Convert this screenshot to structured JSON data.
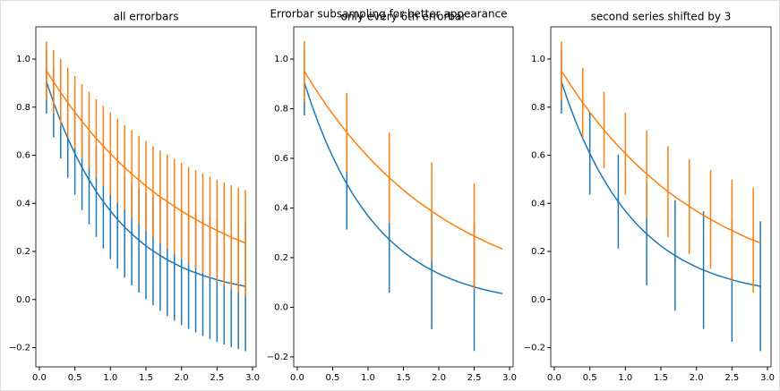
{
  "title": "Errorbar subsampling for better appearance",
  "chart_data": [
    {
      "type": "line",
      "title": "all errorbars",
      "x": [
        0.1,
        0.2,
        0.3,
        0.4,
        0.5,
        0.6,
        0.7,
        0.8,
        0.9,
        1.0,
        1.1,
        1.2,
        1.3,
        1.4,
        1.5,
        1.6,
        1.7,
        1.8,
        1.9,
        2.0,
        2.1,
        2.2,
        2.3,
        2.4,
        2.5,
        2.6,
        2.7,
        2.8,
        2.9
      ],
      "xlim": [
        -0.05,
        3.05
      ],
      "ylim": [
        -0.28,
        1.134
      ],
      "xticks": [
        {
          "value": 0,
          "label": "0.0"
        },
        0.5,
        {
          "value": 1,
          "label": "1.0"
        },
        1.5,
        {
          "value": 2,
          "label": "2.0"
        },
        2.5,
        {
          "value": 3,
          "label": "3.0"
        }
      ],
      "yticks": [
        {
          "value": -0.2,
          "label": "−0.2"
        },
        {
          "value": 0,
          "label": "0.0"
        },
        0.2,
        0.4,
        0.6,
        0.8,
        {
          "value": 1,
          "label": "1.0"
        }
      ],
      "series": [
        {
          "color": "#1f77b4",
          "values": [
            0.905,
            0.819,
            0.741,
            0.67,
            0.607,
            0.549,
            0.497,
            0.449,
            0.407,
            0.368,
            0.333,
            0.301,
            0.273,
            0.247,
            0.223,
            0.202,
            0.183,
            0.165,
            0.15,
            0.135,
            0.122,
            0.111,
            0.1,
            0.091,
            0.082,
            0.074,
            0.067,
            0.061,
            0.055
          ],
          "errors": [
            0.132,
            0.145,
            0.155,
            0.163,
            0.171,
            0.177,
            0.184,
            0.189,
            0.195,
            0.2,
            0.205,
            0.21,
            0.214,
            0.218,
            0.222,
            0.226,
            0.23,
            0.234,
            0.238,
            0.241,
            0.245,
            0.248,
            0.252,
            0.255,
            0.258,
            0.261,
            0.264,
            0.267,
            0.27
          ]
        },
        {
          "color": "#ff7f0e",
          "values": [
            0.951,
            0.905,
            0.861,
            0.819,
            0.779,
            0.741,
            0.705,
            0.67,
            0.638,
            0.607,
            0.577,
            0.549,
            0.522,
            0.497,
            0.472,
            0.449,
            0.427,
            0.407,
            0.387,
            0.368,
            0.35,
            0.333,
            0.317,
            0.301,
            0.287,
            0.273,
            0.259,
            0.247,
            0.235
          ],
          "errors": [
            0.122,
            0.132,
            0.139,
            0.145,
            0.15,
            0.155,
            0.159,
            0.163,
            0.167,
            0.171,
            0.174,
            0.177,
            0.181,
            0.184,
            0.187,
            0.189,
            0.192,
            0.195,
            0.197,
            0.2,
            0.202,
            0.205,
            0.207,
            0.21,
            0.212,
            0.214,
            0.216,
            0.218,
            0.22
          ]
        }
      ]
    },
    {
      "type": "line",
      "title": "only every 6th errorbar",
      "x": [
        0.1,
        0.2,
        0.3,
        0.4,
        0.5,
        0.6,
        0.7,
        0.8,
        0.9,
        1.0,
        1.1,
        1.2,
        1.3,
        1.4,
        1.5,
        1.6,
        1.7,
        1.8,
        1.9,
        2.0,
        2.1,
        2.2,
        2.3,
        2.4,
        2.5,
        2.6,
        2.7,
        2.8,
        2.9
      ],
      "xlim": [
        -0.05,
        3.05
      ],
      "ylim": [
        -0.24,
        1.13
      ],
      "xticks": [
        {
          "value": 0,
          "label": "0.0"
        },
        0.5,
        {
          "value": 1,
          "label": "1.0"
        },
        1.5,
        {
          "value": 2,
          "label": "2.0"
        },
        2.5,
        {
          "value": 3,
          "label": "3.0"
        }
      ],
      "yticks": [
        {
          "value": -0.2,
          "label": "−0.2"
        },
        {
          "value": 0,
          "label": "0.0"
        },
        0.2,
        0.4,
        0.6,
        0.8,
        {
          "value": 1,
          "label": "1.0"
        }
      ],
      "series": [
        {
          "color": "#1f77b4",
          "values": [
            0.905,
            0.819,
            0.741,
            0.67,
            0.607,
            0.549,
            0.497,
            0.449,
            0.407,
            0.368,
            0.333,
            0.301,
            0.273,
            0.247,
            0.223,
            0.202,
            0.183,
            0.165,
            0.15,
            0.135,
            0.122,
            0.111,
            0.1,
            0.091,
            0.082,
            0.074,
            0.067,
            0.061,
            0.055
          ],
          "errors": [
            0.132,
            null,
            null,
            null,
            null,
            null,
            0.184,
            null,
            null,
            null,
            null,
            null,
            0.214,
            null,
            null,
            null,
            null,
            null,
            0.238,
            null,
            null,
            null,
            null,
            null,
            0.258,
            null,
            null,
            null,
            null
          ]
        },
        {
          "color": "#ff7f0e",
          "values": [
            0.951,
            0.905,
            0.861,
            0.819,
            0.779,
            0.741,
            0.705,
            0.67,
            0.638,
            0.607,
            0.577,
            0.549,
            0.522,
            0.497,
            0.472,
            0.449,
            0.427,
            0.407,
            0.387,
            0.368,
            0.35,
            0.333,
            0.317,
            0.301,
            0.287,
            0.273,
            0.259,
            0.247,
            0.235
          ],
          "errors": [
            0.122,
            null,
            null,
            null,
            null,
            null,
            0.159,
            null,
            null,
            null,
            null,
            null,
            0.181,
            null,
            null,
            null,
            null,
            null,
            0.197,
            null,
            null,
            null,
            null,
            null,
            0.212,
            null,
            null,
            null,
            null
          ]
        }
      ]
    },
    {
      "type": "line",
      "title": "second series shifted by 3",
      "x": [
        0.1,
        0.2,
        0.3,
        0.4,
        0.5,
        0.6,
        0.7,
        0.8,
        0.9,
        1.0,
        1.1,
        1.2,
        1.3,
        1.4,
        1.5,
        1.6,
        1.7,
        1.8,
        1.9,
        2.0,
        2.1,
        2.2,
        2.3,
        2.4,
        2.5,
        2.6,
        2.7,
        2.8,
        2.9
      ],
      "xlim": [
        -0.05,
        3.05
      ],
      "ylim": [
        -0.28,
        1.134
      ],
      "xticks": [
        {
          "value": 0,
          "label": "0.0"
        },
        0.5,
        {
          "value": 1,
          "label": "1.0"
        },
        1.5,
        {
          "value": 2,
          "label": "2.0"
        },
        2.5,
        {
          "value": 3,
          "label": "3.0"
        }
      ],
      "yticks": [
        {
          "value": -0.2,
          "label": "−0.2"
        },
        {
          "value": 0,
          "label": "0.0"
        },
        0.2,
        0.4,
        0.6,
        0.8,
        {
          "value": 1,
          "label": "1.0"
        }
      ],
      "series": [
        {
          "color": "#1f77b4",
          "values": [
            0.905,
            0.819,
            0.741,
            0.67,
            0.607,
            0.549,
            0.497,
            0.449,
            0.407,
            0.368,
            0.333,
            0.301,
            0.273,
            0.247,
            0.223,
            0.202,
            0.183,
            0.165,
            0.15,
            0.135,
            0.122,
            0.111,
            0.1,
            0.091,
            0.082,
            0.074,
            0.067,
            0.061,
            0.055
          ],
          "errors": [
            0.132,
            null,
            null,
            null,
            0.171,
            null,
            null,
            null,
            0.195,
            null,
            null,
            null,
            0.214,
            null,
            null,
            null,
            0.23,
            null,
            null,
            null,
            0.245,
            null,
            null,
            null,
            0.258,
            null,
            null,
            null,
            0.27
          ]
        },
        {
          "color": "#ff7f0e",
          "values": [
            0.951,
            0.905,
            0.861,
            0.819,
            0.779,
            0.741,
            0.705,
            0.67,
            0.638,
            0.607,
            0.577,
            0.549,
            0.522,
            0.497,
            0.472,
            0.449,
            0.427,
            0.407,
            0.387,
            0.368,
            0.35,
            0.333,
            0.317,
            0.301,
            0.287,
            0.273,
            0.259,
            0.247,
            0.235
          ],
          "errors": [
            0.122,
            null,
            null,
            0.145,
            null,
            null,
            0.159,
            null,
            null,
            0.171,
            null,
            null,
            0.181,
            null,
            null,
            0.189,
            null,
            null,
            0.197,
            null,
            null,
            0.205,
            null,
            null,
            0.212,
            null,
            null,
            0.218,
            null
          ]
        }
      ]
    }
  ]
}
